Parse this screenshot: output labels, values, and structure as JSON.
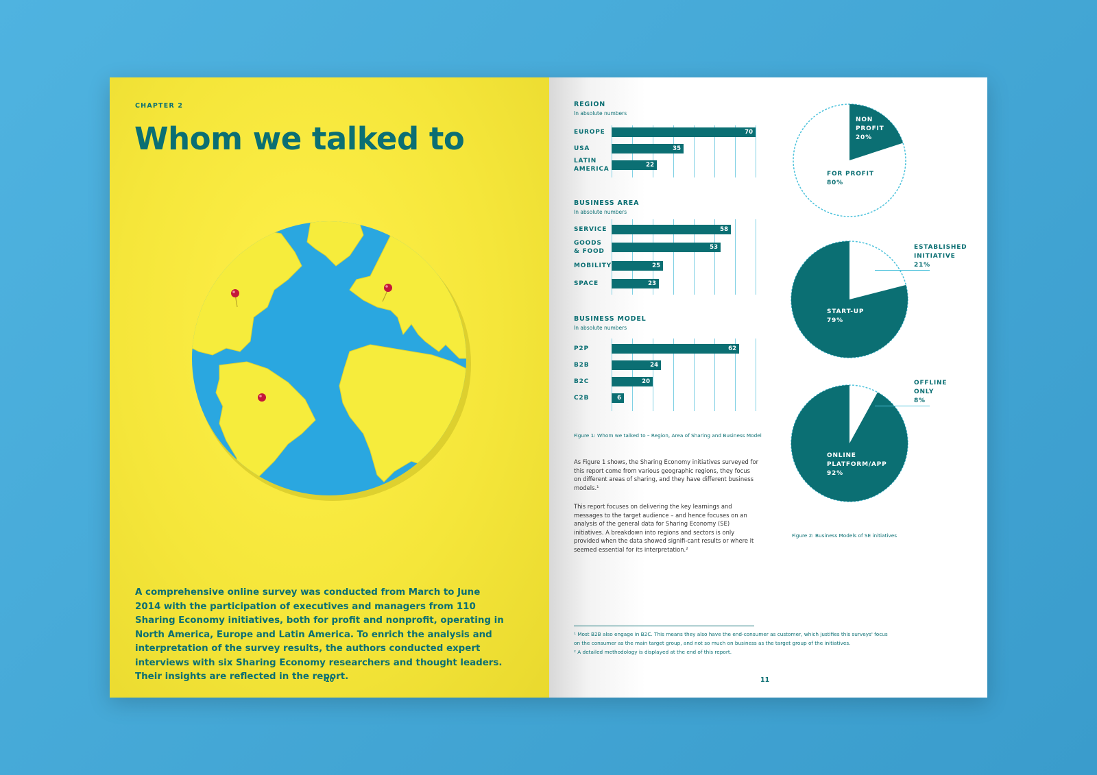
{
  "left_page": {
    "chapter": "CHAPTER 2",
    "title": "Whom we talked to",
    "intro": "A comprehensive online survey was conducted from March to June 2014 with the participation of executives and managers from 110 Sharing Economy initiatives, both for profit and nonprofit, operating in North America, Europe and Latin America. To enrich the analysis and interpretation of the survey results, the authors conducted expert interviews with six Sharing Economy researchers and thought leaders. Their insights are reflected in the report.",
    "page_number": "10",
    "image": "paper-globe-with-map-pins"
  },
  "right_page": {
    "page_number": "11",
    "figure1_caption": "Figure 1: Whom we talked to – Region, Area of Sharing and Business Model",
    "figure2_caption": "Figure 2: Business Models of SE initiatives",
    "paragraph1": "As Figure 1 shows, the Sharing Economy initiatives surveyed for this report come from various geographic regions, they focus on different areas of sharing, and they have different business models.¹",
    "paragraph2": "This report focuses on delivering the key learnings and messages to the target audience – and hence focuses on an analysis of the general data for Sharing Economy (SE) initiatives. A breakdown into regions and sectors is only provided when the data showed signifi-cant results or where it seemed essential for its interpretation.²",
    "footnote1_line1": "¹ Most B2B also engage in B2C. This means they also have the end-consumer as customer, which justifies this surveys' focus",
    "footnote1_line2": "on the consumer as the main target group, and not so much on business as the target group of the initiatives.",
    "footnote2": "² A detailed methodology is displayed at the end of this report."
  },
  "colors": {
    "teal": "#0b6f73",
    "yellow": "#f5e63a",
    "globe_blue": "#2aa7e0",
    "grid": "#7fd0e4"
  },
  "chart_data": [
    {
      "type": "bar",
      "title": "REGION",
      "subtitle": "In absolute numbers",
      "categories": [
        "EUROPE",
        "USA",
        "LATIN\nAMERICA"
      ],
      "values": [
        70,
        35,
        22
      ],
      "xlim": [
        0,
        70
      ]
    },
    {
      "type": "bar",
      "title": "BUSINESS AREA",
      "subtitle": "In absolute numbers",
      "categories": [
        "SERVICE",
        "GOODS\n& FOOD",
        "MOBILITY",
        "SPACE"
      ],
      "values": [
        58,
        53,
        25,
        23
      ],
      "xlim": [
        0,
        70
      ]
    },
    {
      "type": "bar",
      "title": "BUSINESS MODEL",
      "subtitle": "In absolute numbers",
      "categories": [
        "P2P",
        "B2B",
        "B2C",
        "C2B"
      ],
      "values": [
        62,
        24,
        20,
        6
      ],
      "xlim": [
        0,
        70
      ]
    },
    {
      "type": "pie",
      "slices": [
        {
          "label": "NON\nPROFIT\n20%",
          "value": 20,
          "filled": true
        },
        {
          "label": "FOR PROFIT\n80%",
          "value": 80,
          "filled": false
        }
      ]
    },
    {
      "type": "pie",
      "slices": [
        {
          "label": "ESTABLISHED\nINITIATIVE\n21%",
          "value": 21,
          "filled": false
        },
        {
          "label": "START-UP\n79%",
          "value": 79,
          "filled": true
        }
      ]
    },
    {
      "type": "pie",
      "slices": [
        {
          "label": "OFFLINE\nONLY\n8%",
          "value": 8,
          "filled": false
        },
        {
          "label": "ONLINE\nPLATFORM/APP\n92%",
          "value": 92,
          "filled": true
        }
      ]
    }
  ]
}
